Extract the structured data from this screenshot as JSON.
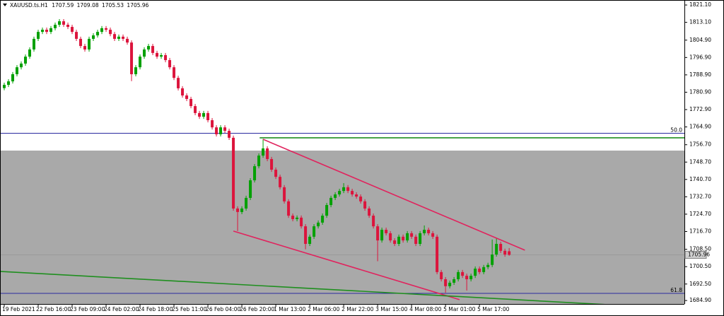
{
  "chart_data": {
    "type": "candlestick",
    "symbol": "XAUUSD.ts.H1",
    "categories": [
      "19 Feb 2021",
      null,
      null,
      null,
      null,
      null,
      null,
      null,
      "22 Feb 16:00",
      null,
      null,
      null,
      null,
      null,
      null,
      null,
      "23 Feb 09:00",
      null,
      null,
      null,
      null,
      null,
      null,
      null,
      "24 Feb 02:00",
      null,
      null,
      null,
      null,
      null,
      null,
      null,
      "24 Feb 18:00",
      null,
      null,
      null,
      null,
      null,
      null,
      null,
      "25 Feb 11:00",
      null,
      null,
      null,
      null,
      null,
      null,
      null,
      "26 Feb 04:00",
      null,
      null,
      null,
      null,
      null,
      null,
      null,
      "26 Feb 20:00",
      null,
      null,
      null,
      null,
      null,
      null,
      null,
      "1 Mar 13:00",
      null,
      null,
      null,
      null,
      null,
      null,
      null,
      "2 Mar 06:00",
      null,
      null,
      null,
      null,
      null,
      null,
      null,
      "2 Mar 22:00",
      null,
      null,
      null,
      null,
      null,
      null,
      null,
      "3 Mar 15:00",
      null,
      null,
      null,
      null,
      null,
      null,
      null,
      "4 Mar 08:00",
      null,
      null,
      null,
      null,
      null,
      null,
      null,
      "5 Mar 01:00",
      null,
      null,
      null,
      null,
      null,
      null,
      null,
      "5 Mar 17:00",
      null,
      null,
      null,
      null,
      null,
      null,
      null
    ],
    "open": [
      1782.8,
      1784.3,
      1785.9,
      1789.2,
      1792.4,
      1794.1,
      1797.3,
      1800.6,
      1805.5,
      1808.7,
      1809.7,
      1808.7,
      1810.4,
      1812.0,
      1813.6,
      1812.0,
      1811.0,
      1808.7,
      1805.5,
      1802.2,
      1800.6,
      1805.5,
      1807.1,
      1808.7,
      1810.4,
      1809.7,
      1807.7,
      1805.5,
      1806.5,
      1805.5,
      1803.8,
      1789.2,
      1792.4,
      1797.3,
      1800.6,
      1802.2,
      1799.0,
      1797.3,
      1798.0,
      1795.7,
      1792.4,
      1787.5,
      1782.7,
      1779.4,
      1777.8,
      1774.5,
      1771.3,
      1769.6,
      1771.3,
      1768.0,
      1764.7,
      1761.5,
      1764.7,
      1763.1,
      1759.9,
      1727.3,
      1725.7,
      1727.3,
      1732.2,
      1740.3,
      1746.8,
      1751.7,
      1755.0,
      1750.1,
      1745.2,
      1741.9,
      1737.1,
      1730.6,
      1724.0,
      1722.4,
      1723.1,
      1719.1,
      1711.0,
      1714.3,
      1719.1,
      1720.8,
      1724.0,
      1728.9,
      1732.2,
      1733.8,
      1735.4,
      1737.1,
      1735.4,
      1733.8,
      1732.8,
      1730.6,
      1727.3,
      1724.0,
      1719.1,
      1712.6,
      1717.5,
      1715.9,
      1712.6,
      1711.0,
      1714.3,
      1712.6,
      1715.9,
      1714.3,
      1711.0,
      1715.9,
      1717.5,
      1715.9,
      1714.3,
      1698.0,
      1694.7,
      1691.5,
      1693.1,
      1694.7,
      1698.0,
      1696.3,
      1694.7,
      1696.3,
      1699.6,
      1698.0,
      1700.3,
      1701.3,
      1706.1,
      1711.0,
      1707.8,
      1707.59
    ],
    "high": [
      1785.3,
      1786.9,
      1790.2,
      1793.4,
      1795.1,
      1798.3,
      1801.6,
      1806.5,
      1809.7,
      1810.7,
      1810.7,
      1811.4,
      1813.0,
      1814.6,
      1814.6,
      1813.0,
      1812.0,
      1809.7,
      1806.5,
      1803.2,
      1806.5,
      1808.1,
      1809.7,
      1811.4,
      1811.4,
      1810.7,
      1808.7,
      1807.5,
      1807.5,
      1806.5,
      1804.8,
      1793.4,
      1798.3,
      1801.6,
      1803.2,
      1803.2,
      1800.0,
      1799.0,
      1799.0,
      1796.7,
      1793.4,
      1788.5,
      1783.7,
      1780.4,
      1778.8,
      1775.5,
      1772.3,
      1772.3,
      1772.3,
      1769.0,
      1765.7,
      1765.7,
      1765.7,
      1764.1,
      1760.9,
      1728.3,
      1728.3,
      1733.2,
      1741.3,
      1747.8,
      1752.7,
      1759.3,
      1756.0,
      1751.1,
      1746.2,
      1742.9,
      1738.1,
      1731.6,
      1725.0,
      1724.1,
      1724.1,
      1720.1,
      1715.3,
      1720.1,
      1721.8,
      1725.0,
      1729.9,
      1733.2,
      1734.8,
      1736.4,
      1739.0,
      1738.1,
      1736.4,
      1734.8,
      1733.8,
      1731.6,
      1728.3,
      1725.0,
      1720.1,
      1718.5,
      1718.5,
      1716.9,
      1713.6,
      1715.3,
      1715.3,
      1716.9,
      1716.9,
      1715.3,
      1716.9,
      1719.5,
      1718.5,
      1716.9,
      1715.3,
      1699.0,
      1695.7,
      1694.1,
      1695.7,
      1699.0,
      1699.0,
      1697.3,
      1697.3,
      1700.6,
      1700.6,
      1701.3,
      1702.3,
      1713.0,
      1713.5,
      1712.0,
      1708.8,
      1709.08
    ],
    "low": [
      1781.8,
      1783.3,
      1784.9,
      1788.2,
      1791.4,
      1793.1,
      1796.3,
      1799.6,
      1804.5,
      1807.7,
      1807.7,
      1807.7,
      1809.4,
      1811.0,
      1811.0,
      1810.0,
      1807.7,
      1804.5,
      1801.2,
      1799.6,
      1799.6,
      1804.5,
      1806.1,
      1807.7,
      1808.7,
      1806.7,
      1804.5,
      1804.5,
      1804.5,
      1802.8,
      1786.0,
      1788.2,
      1791.4,
      1796.3,
      1799.6,
      1798.0,
      1796.3,
      1796.3,
      1794.7,
      1791.4,
      1786.5,
      1781.7,
      1778.4,
      1776.8,
      1773.5,
      1770.3,
      1768.6,
      1768.6,
      1767.0,
      1763.7,
      1760.5,
      1760.5,
      1762.1,
      1758.9,
      1726.3,
      1716.9,
      1724.7,
      1726.3,
      1731.2,
      1739.3,
      1745.8,
      1750.7,
      1749.1,
      1744.2,
      1740.9,
      1736.1,
      1729.6,
      1723.0,
      1721.4,
      1721.4,
      1718.1,
      1708.5,
      1710.0,
      1713.3,
      1718.1,
      1719.8,
      1723.0,
      1727.9,
      1731.2,
      1732.8,
      1734.4,
      1734.4,
      1732.8,
      1731.8,
      1729.6,
      1726.3,
      1723.0,
      1718.1,
      1703.0,
      1711.6,
      1714.9,
      1711.6,
      1710.0,
      1710.0,
      1711.6,
      1711.6,
      1713.3,
      1710.0,
      1710.0,
      1714.9,
      1714.9,
      1713.3,
      1697.0,
      1693.7,
      1688.5,
      1690.5,
      1692.1,
      1693.7,
      1695.3,
      1689.5,
      1693.7,
      1695.3,
      1697.0,
      1697.0,
      1699.3,
      1700.3,
      1705.1,
      1706.8,
      1705.1,
      1705.53
    ],
    "close": [
      1784.3,
      1785.9,
      1789.2,
      1792.4,
      1794.1,
      1797.3,
      1800.6,
      1805.5,
      1808.7,
      1809.7,
      1808.7,
      1810.4,
      1812.0,
      1813.6,
      1812.0,
      1811.0,
      1808.7,
      1805.5,
      1802.2,
      1800.6,
      1805.5,
      1807.1,
      1808.7,
      1810.4,
      1809.7,
      1807.7,
      1805.5,
      1806.5,
      1805.5,
      1803.8,
      1789.2,
      1792.4,
      1797.3,
      1800.6,
      1802.2,
      1799.0,
      1797.3,
      1798.0,
      1795.7,
      1792.4,
      1787.5,
      1782.7,
      1779.4,
      1777.8,
      1774.5,
      1771.3,
      1769.6,
      1771.3,
      1768.0,
      1764.7,
      1761.5,
      1764.7,
      1763.1,
      1759.9,
      1727.3,
      1725.7,
      1727.3,
      1732.2,
      1740.3,
      1746.8,
      1751.7,
      1755.0,
      1750.1,
      1745.2,
      1741.9,
      1737.1,
      1730.6,
      1724.0,
      1722.4,
      1723.1,
      1719.1,
      1711.0,
      1714.3,
      1719.1,
      1720.8,
      1724.0,
      1728.9,
      1732.2,
      1733.8,
      1735.4,
      1737.1,
      1735.4,
      1733.8,
      1732.8,
      1730.6,
      1727.3,
      1724.0,
      1719.1,
      1712.6,
      1717.5,
      1715.9,
      1712.6,
      1711.0,
      1714.3,
      1712.6,
      1715.9,
      1714.3,
      1711.0,
      1715.9,
      1717.5,
      1715.9,
      1714.3,
      1698.0,
      1694.7,
      1691.5,
      1693.1,
      1694.7,
      1698.0,
      1696.3,
      1694.7,
      1696.3,
      1699.6,
      1698.0,
      1700.3,
      1701.3,
      1706.1,
      1711.0,
      1707.8,
      1706.1,
      1705.96
    ],
    "up_color": "#00a000",
    "down_color": "#dc143c",
    "xlim": [
      -1,
      160.3
    ],
    "ylim": [
      1683.3,
      1823.4
    ],
    "yticks": [
      {
        "value": 1821.1,
        "label": "1821.10"
      },
      {
        "value": 1813.1,
        "label": "1813.10"
      },
      {
        "value": 1804.9,
        "label": "1804.90"
      },
      {
        "value": 1796.9,
        "label": "1796.90"
      },
      {
        "value": 1788.9,
        "label": "1788.90"
      },
      {
        "value": 1780.9,
        "label": "1780.90"
      },
      {
        "value": 1772.9,
        "label": "1772.90"
      },
      {
        "value": 1764.9,
        "label": "1764.90"
      },
      {
        "value": 1756.7,
        "label": "1756.70"
      },
      {
        "value": 1748.7,
        "label": "1748.70"
      },
      {
        "value": 1740.7,
        "label": "1740.70"
      },
      {
        "value": 1732.7,
        "label": "1732.70"
      },
      {
        "value": 1724.7,
        "label": "1724.70"
      },
      {
        "value": 1716.7,
        "label": "1716.70"
      },
      {
        "value": 1708.5,
        "label": "1708.50"
      },
      {
        "value": 1700.5,
        "label": "1700.50"
      },
      {
        "value": 1692.5,
        "label": "1692.50"
      },
      {
        "value": 1684.9,
        "label": "1684.90"
      }
    ],
    "zone": {
      "from": 1754.0,
      "to": 1683.3,
      "color": "#a9a9a9"
    },
    "levels": [
      {
        "label": "50.0",
        "value": 1762.0,
        "color": "#2a2aa0"
      },
      {
        "label": "61.8",
        "value": 1688.2,
        "color": "#2a2aa0"
      }
    ],
    "trendlines": [
      {
        "x": [
          61,
          122.7
        ],
        "y": [
          1759.2,
          1708.1
        ],
        "color": "#e0245e"
      },
      {
        "x": [
          54,
          107.3
        ],
        "y": [
          1716.9,
          1685.3
        ],
        "color": "#e0245e"
      },
      {
        "x": [
          60.2,
          160.3
        ],
        "y": [
          1759.9,
          1759.9
        ],
        "color": "#1f8f1f"
      },
      {
        "x": [
          -1,
          144.8
        ],
        "y": [
          1698.3,
          1682.7
        ],
        "color": "#1f8f1f"
      }
    ],
    "price_line_color": "#9a9a9a"
  }
}
